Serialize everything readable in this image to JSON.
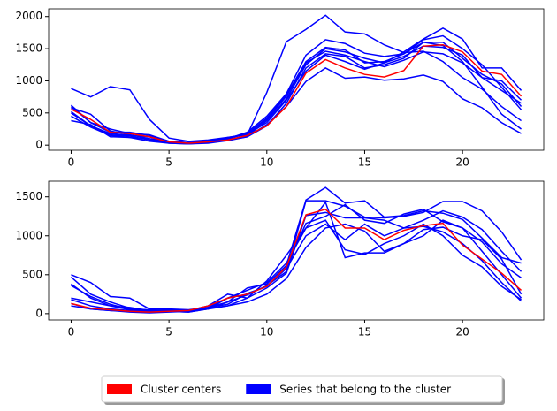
{
  "chart_data": [
    {
      "type": "line",
      "x": [
        0,
        1,
        2,
        3,
        4,
        5,
        6,
        7,
        8,
        9,
        10,
        11,
        12,
        13,
        14,
        15,
        16,
        17,
        18,
        19,
        20,
        21,
        22,
        23
      ],
      "xlim": [
        -1.15,
        24.15
      ],
      "xticks": [
        0,
        5,
        10,
        15,
        20
      ],
      "ylim": [
        -80,
        2120
      ],
      "yticks": [
        0,
        500,
        1000,
        1500,
        2000
      ],
      "series": [
        {
          "color": "#0000ff",
          "values": [
            880,
            750,
            910,
            860,
            400,
            110,
            60,
            80,
            120,
            160,
            820,
            1610,
            1800,
            2020,
            1760,
            1730,
            1560,
            1440,
            1460,
            1300,
            1050,
            870,
            600,
            380
          ]
        },
        {
          "color": "#0000ff",
          "values": [
            600,
            350,
            250,
            180,
            160,
            60,
            30,
            60,
            100,
            200,
            450,
            800,
            1400,
            1640,
            1580,
            1430,
            1380,
            1420,
            1640,
            1700,
            1500,
            1250,
            900,
            550
          ]
        },
        {
          "color": "#0000ff",
          "values": [
            520,
            300,
            180,
            150,
            130,
            40,
            20,
            50,
            90,
            140,
            380,
            720,
            1250,
            1500,
            1450,
            1350,
            1280,
            1450,
            1650,
            1820,
            1650,
            1200,
            1200,
            850
          ]
        },
        {
          "color": "#0000ff",
          "values": [
            450,
            280,
            150,
            120,
            100,
            30,
            20,
            40,
            80,
            130,
            320,
            600,
            990,
            1200,
            1040,
            1060,
            1010,
            1030,
            1090,
            990,
            720,
            580,
            350,
            180
          ]
        },
        {
          "color": "#0000ff",
          "values": [
            380,
            320,
            130,
            120,
            60,
            30,
            20,
            30,
            70,
            130,
            300,
            650,
            1200,
            1420,
            1380,
            1200,
            1250,
            1350,
            1600,
            1550,
            1300,
            900,
            480,
            250
          ]
        },
        {
          "color": "#0000ff",
          "values": [
            580,
            480,
            220,
            160,
            100,
            50,
            30,
            60,
            120,
            170,
            400,
            760,
            1280,
            1460,
            1400,
            1300,
            1220,
            1320,
            1450,
            1420,
            1280,
            1050,
            1000,
            700
          ]
        },
        {
          "color": "#0000ff",
          "values": [
            500,
            300,
            160,
            140,
            80,
            40,
            30,
            50,
            100,
            180,
            420,
            780,
            1300,
            1520,
            1480,
            1280,
            1300,
            1420,
            1600,
            1600,
            1350,
            1100,
            950,
            600
          ]
        },
        {
          "color": "#0000ff",
          "values": [
            620,
            350,
            200,
            200,
            150,
            60,
            40,
            70,
            110,
            170,
            350,
            700,
            1150,
            1400,
            1300,
            1180,
            1280,
            1380,
            1540,
            1520,
            1400,
            1050,
            850,
            650
          ]
        },
        {
          "color": "#ff0000",
          "values": [
            560,
            400,
            200,
            180,
            130,
            50,
            30,
            50,
            80,
            150,
            300,
            600,
            1120,
            1330,
            1200,
            1100,
            1060,
            1160,
            1540,
            1560,
            1450,
            1150,
            1100,
            760
          ]
        }
      ]
    },
    {
      "type": "line",
      "x": [
        0,
        1,
        2,
        3,
        4,
        5,
        6,
        7,
        8,
        9,
        10,
        11,
        12,
        13,
        14,
        15,
        16,
        17,
        18,
        19,
        20,
        21,
        22,
        23
      ],
      "xlim": [
        -1.15,
        24.15
      ],
      "xticks": [
        0,
        5,
        10,
        15,
        20
      ],
      "ylim": [
        -81,
        1701
      ],
      "yticks": [
        0,
        500,
        1000,
        1500
      ],
      "series": [
        {
          "color": "#0000ff",
          "values": [
            500,
            400,
            220,
            200,
            60,
            60,
            50,
            80,
            150,
            330,
            380,
            620,
            1460,
            1620,
            1420,
            1450,
            1240,
            1260,
            1320,
            1290,
            1210,
            970,
            720,
            650
          ]
        },
        {
          "color": "#0000ff",
          "values": [
            470,
            250,
            150,
            70,
            40,
            30,
            20,
            60,
            150,
            240,
            360,
            540,
            1450,
            1450,
            1380,
            1240,
            1230,
            1250,
            1300,
            1440,
            1440,
            1320,
            1050,
            690
          ]
        },
        {
          "color": "#0000ff",
          "values": [
            200,
            150,
            100,
            50,
            40,
            50,
            40,
            100,
            250,
            200,
            420,
            750,
            1100,
            1430,
            720,
            780,
            780,
            900,
            1080,
            1110,
            1000,
            950,
            700,
            250
          ]
        },
        {
          "color": "#0000ff",
          "values": [
            180,
            100,
            60,
            40,
            30,
            40,
            30,
            70,
            100,
            150,
            250,
            450,
            850,
            1100,
            1150,
            1060,
            800,
            900,
            1000,
            1200,
            1100,
            800,
            500,
            200
          ]
        },
        {
          "color": "#0000ff",
          "values": [
            130,
            60,
            40,
            20,
            10,
            20,
            30,
            80,
            200,
            300,
            400,
            650,
            1100,
            1200,
            820,
            760,
            900,
            1000,
            1150,
            1000,
            750,
            600,
            350,
            180
          ]
        },
        {
          "color": "#0000ff",
          "values": [
            360,
            220,
            120,
            60,
            50,
            40,
            30,
            80,
            120,
            260,
            350,
            600,
            1160,
            1250,
            1400,
            1200,
            1160,
            1280,
            1340,
            1180,
            1100,
            920,
            640,
            460
          ]
        },
        {
          "color": "#0000ff",
          "values": [
            100,
            60,
            40,
            30,
            20,
            30,
            20,
            60,
            200,
            250,
            350,
            580,
            1000,
            1150,
            950,
            1150,
            1000,
            1100,
            1120,
            1050,
            900,
            680,
            400,
            160
          ]
        },
        {
          "color": "#0000ff",
          "values": [
            380,
            200,
            100,
            80,
            40,
            40,
            30,
            60,
            100,
            200,
            330,
            520,
            1260,
            1300,
            1230,
            1230,
            1200,
            1100,
            1200,
            1320,
            1240,
            1080,
            800,
            540
          ]
        },
        {
          "color": "#ff0000",
          "values": [
            130,
            70,
            50,
            30,
            20,
            30,
            40,
            100,
            200,
            250,
            350,
            600,
            1270,
            1340,
            1100,
            1100,
            950,
            1070,
            1130,
            1160,
            880,
            700,
            520,
            300
          ]
        }
      ]
    }
  ],
  "legend": {
    "position": "lower center",
    "items": [
      {
        "label": "Cluster centers",
        "color": "#ff0000"
      },
      {
        "label": "Series that belong to the cluster",
        "color": "#0000ff"
      }
    ]
  }
}
